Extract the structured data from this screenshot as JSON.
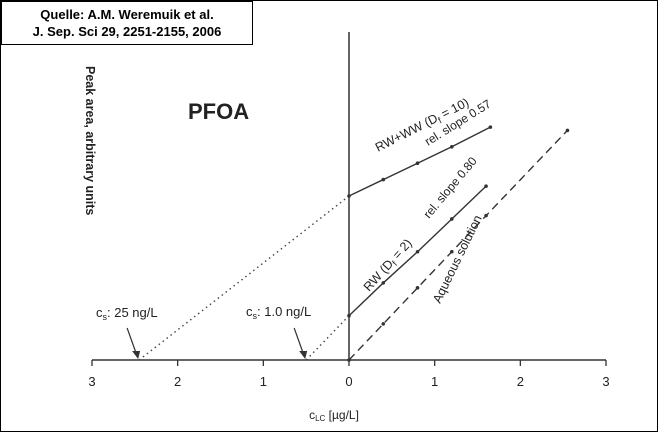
{
  "source": {
    "line1": "Quelle: A.M. Weremuik et al.",
    "line2": "J. Sep. Sci 29, 2251-2155, 2006"
  },
  "chart_data": {
    "type": "line",
    "title": "PFOA",
    "xlabel": "c",
    "xlabel_sub": "LC",
    "xlabel_unit": " [µg/L]",
    "ylabel": "Peak area, arbitrary units",
    "xlim": [
      -3,
      3
    ],
    "ylim": [
      0,
      10
    ],
    "x_ticks": [
      {
        "value": -3,
        "label": "3"
      },
      {
        "value": -2,
        "label": "2"
      },
      {
        "value": -1,
        "label": "1"
      },
      {
        "value": 0,
        "label": "0"
      },
      {
        "value": 1,
        "label": "1"
      },
      {
        "value": 2,
        "label": "2"
      },
      {
        "value": 3,
        "label": "3"
      }
    ],
    "series": [
      {
        "name": "RW+WW (D",
        "name_sub": "f",
        "name_suffix": " = 10)",
        "slope_label": "rel. slope 0.57",
        "style": "solid",
        "points": [
          [
            0,
            5.0
          ],
          [
            0.4,
            5.5
          ],
          [
            0.8,
            6.0
          ],
          [
            1.2,
            6.5
          ],
          [
            1.65,
            7.1
          ]
        ],
        "extrapolation": {
          "from": [
            0,
            5.0
          ],
          "to": [
            -2.45,
            0
          ]
        }
      },
      {
        "name": "RW (D",
        "name_sub": "f",
        "name_suffix": " = 2)",
        "slope_label": "rel. slope 0.80",
        "style": "solid",
        "points": [
          [
            0,
            1.35
          ],
          [
            0.4,
            2.35
          ],
          [
            0.8,
            3.3
          ],
          [
            1.2,
            4.3
          ],
          [
            1.6,
            5.3
          ]
        ],
        "extrapolation": {
          "from": [
            0,
            1.35
          ],
          "to": [
            -0.5,
            0
          ]
        }
      },
      {
        "name": "Aqueous solution",
        "style": "dashed",
        "points": [
          [
            0,
            0
          ],
          [
            0.4,
            1.1
          ],
          [
            0.8,
            2.2
          ],
          [
            1.2,
            3.3
          ],
          [
            1.6,
            4.4
          ],
          [
            2.55,
            7.0
          ]
        ]
      }
    ],
    "annotations": [
      {
        "text": "c",
        "sub": "s",
        "rest": ": 25 ng/L",
        "at": [
          -2.45,
          0
        ]
      },
      {
        "text": "c",
        "sub": "s",
        "rest": ": 1.0 ng/L",
        "at": [
          -0.5,
          0
        ]
      }
    ]
  }
}
